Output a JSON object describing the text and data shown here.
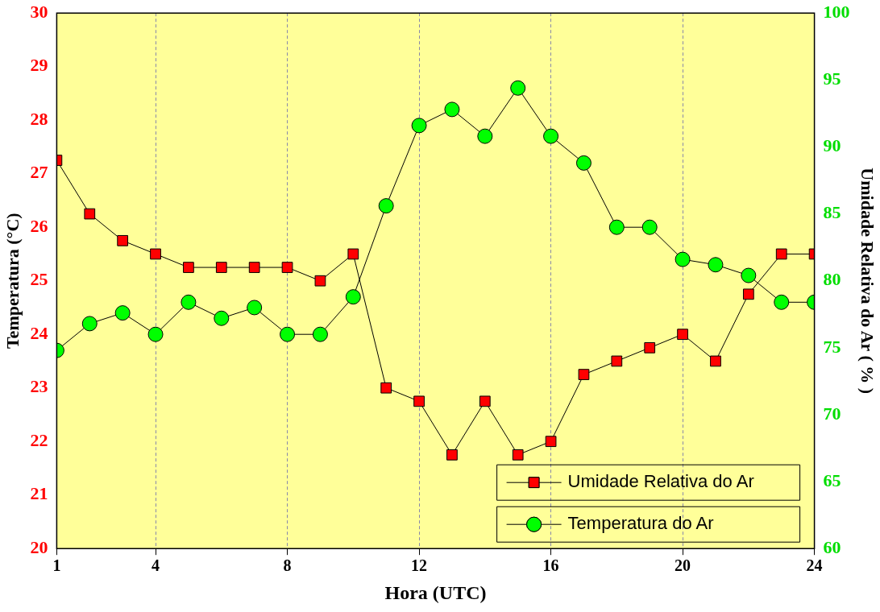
{
  "chart_data": {
    "type": "line",
    "xlabel": "Hora (UTC)",
    "ylabel": "Temperatura (°C)",
    "y2label": "Umidade Relativa do Ar ( % )",
    "x": [
      1,
      2,
      3,
      4,
      5,
      6,
      7,
      8,
      9,
      10,
      11,
      12,
      13,
      14,
      15,
      16,
      17,
      18,
      19,
      20,
      21,
      22,
      23,
      24
    ],
    "xlim": [
      1,
      24
    ],
    "xticks": [
      1,
      4,
      8,
      12,
      16,
      20,
      24
    ],
    "ylim": [
      20,
      30
    ],
    "yticks": [
      20,
      21,
      22,
      23,
      24,
      25,
      26,
      27,
      28,
      29,
      30
    ],
    "y2lim": [
      60,
      100
    ],
    "y2ticks": [
      60,
      65,
      70,
      75,
      80,
      85,
      90,
      95,
      100
    ],
    "grid": "x",
    "legend": "bottom right",
    "line_style": "solid",
    "series": [
      {
        "name": "Umidade Relativa do Ar",
        "color": "#ff0000",
        "axis": "y2",
        "marker": "square",
        "values": [
          89,
          85,
          83,
          82,
          81,
          81,
          81,
          81,
          80,
          82,
          72,
          71,
          67,
          71,
          67,
          68,
          73,
          74,
          75,
          76,
          74,
          79,
          82,
          82
        ]
      },
      {
        "name": "Temperatura do Ar",
        "color": "#00ff00",
        "marker": "circle",
        "values": [
          23.7,
          24.2,
          24.4,
          24.0,
          24.6,
          24.3,
          24.5,
          24.0,
          24.0,
          24.7,
          26.4,
          27.9,
          28.2,
          27.7,
          28.6,
          27.7,
          27.2,
          26.0,
          26.0,
          25.4,
          25.3,
          25.1,
          24.6,
          24.6
        ]
      }
    ]
  }
}
